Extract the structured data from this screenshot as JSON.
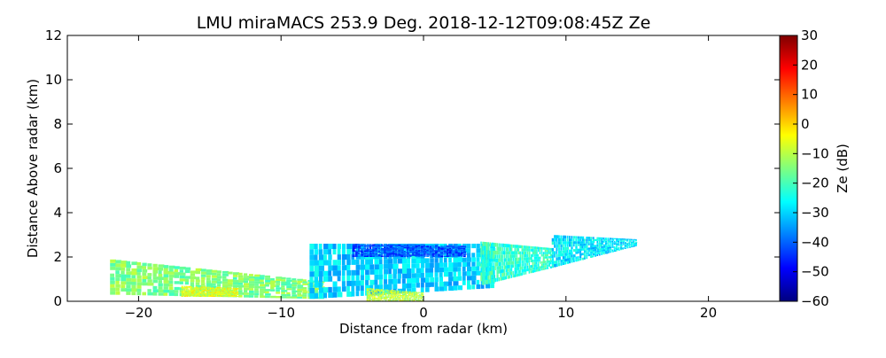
{
  "chart_data": {
    "type": "heatmap",
    "title": "LMU miraMACS 253.9 Deg. 2018-12-12T09:08:45Z  Ze",
    "xlabel": "Distance from radar (km)",
    "ylabel": "Distance Above radar  (km)",
    "xlim": [
      -25,
      25
    ],
    "ylim": [
      0,
      12
    ],
    "xticks": [
      -20,
      -10,
      0,
      10,
      20
    ],
    "xtick_labels": [
      "−20",
      "−10",
      "0",
      "10",
      "20"
    ],
    "yticks": [
      0,
      2,
      4,
      6,
      8,
      10,
      12
    ],
    "ytick_labels": [
      "0",
      "2",
      "4",
      "6",
      "8",
      "10",
      "12"
    ],
    "grid": false,
    "colorbar": {
      "label": "Ze (dB)",
      "range": [
        -60,
        30
      ],
      "ticks": [
        30,
        20,
        10,
        0,
        -10,
        -20,
        -30,
        -40,
        -50,
        -60
      ],
      "tick_labels": [
        "30",
        "20",
        "10",
        "0",
        "−10",
        "−20",
        "−30",
        "−40",
        "−50",
        "−60"
      ],
      "colormap": "jet",
      "stops": [
        "#00007f",
        "#0000ff",
        "#007fff",
        "#00ffff",
        "#7fff7f",
        "#ffff00",
        "#ff7f00",
        "#ff0000",
        "#7f0000"
      ]
    },
    "echo_regions": [
      {
        "x_range": [
          -22,
          -7
        ],
        "top_km": [
          1.9,
          0.9
        ],
        "bottom_km": [
          0.3,
          0.1
        ],
        "typical_ze_db": -15
      },
      {
        "x_range": [
          -17,
          -13
        ],
        "top_km": [
          0.7,
          0.6
        ],
        "bottom_km": [
          0.2,
          0.2
        ],
        "typical_ze_db": -6
      },
      {
        "x_range": [
          -8,
          5
        ],
        "top_km": [
          2.6,
          2.6
        ],
        "bottom_km": [
          0.1,
          0.6
        ],
        "typical_ze_db": -30
      },
      {
        "x_range": [
          -5,
          3
        ],
        "top_km": [
          2.6,
          2.5
        ],
        "bottom_km": [
          2.0,
          2.0
        ],
        "typical_ze_db": -42
      },
      {
        "x_range": [
          -4,
          0
        ],
        "top_km": [
          0.6,
          0.4
        ],
        "bottom_km": [
          0.0,
          0.0
        ],
        "typical_ze_db": -10
      },
      {
        "x_range": [
          4,
          9
        ],
        "top_km": [
          2.7,
          2.4
        ],
        "bottom_km": [
          0.7,
          1.5
        ],
        "typical_ze_db": -22
      },
      {
        "x_range": [
          9,
          15
        ],
        "top_km": [
          3.0,
          2.8
        ],
        "bottom_km": [
          1.5,
          2.5
        ],
        "typical_ze_db": -28
      }
    ]
  }
}
